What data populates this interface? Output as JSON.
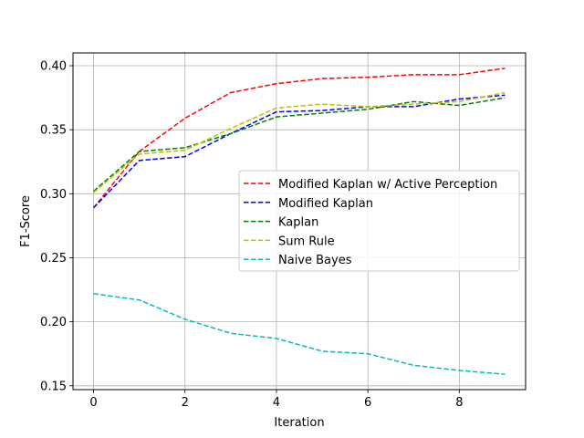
{
  "chart_data": {
    "type": "line",
    "title": "",
    "xlabel": "Iteration",
    "ylabel": "F1-Score",
    "xlim": [
      -0.45,
      9.45
    ],
    "ylim": [
      0.147,
      0.41
    ],
    "xticks": [
      0,
      2,
      4,
      6,
      8
    ],
    "xtick_labels": [
      "0",
      "2",
      "4",
      "6",
      "8"
    ],
    "yticks": [
      0.15,
      0.2,
      0.25,
      0.3,
      0.35,
      0.4
    ],
    "ytick_labels": [
      "0.15",
      "0.20",
      "0.25",
      "0.30",
      "0.35",
      "0.40"
    ],
    "grid": true,
    "legend_position": "center-right",
    "x": [
      0,
      1,
      2,
      3,
      4,
      5,
      6,
      7,
      8,
      9
    ],
    "series": [
      {
        "name": "Modified Kaplan w/ Active Perception",
        "color": "#ff0000",
        "style": "dashed",
        "values": [
          0.289,
          0.333,
          0.359,
          0.379,
          0.386,
          0.39,
          0.391,
          0.393,
          0.393,
          0.398
        ]
      },
      {
        "name": "Modified Kaplan",
        "color": "#0000ff",
        "style": "dashed",
        "values": [
          0.289,
          0.326,
          0.329,
          0.347,
          0.364,
          0.365,
          0.368,
          0.368,
          0.374,
          0.377
        ]
      },
      {
        "name": "Kaplan",
        "color": "#008000",
        "style": "dashed",
        "values": [
          0.302,
          0.333,
          0.336,
          0.347,
          0.36,
          0.363,
          0.366,
          0.372,
          0.369,
          0.375
        ]
      },
      {
        "name": "Sum Rule",
        "color": "#bfbf00",
        "style": "dashed",
        "values": [
          0.301,
          0.331,
          0.334,
          0.351,
          0.367,
          0.37,
          0.368,
          0.37,
          0.372,
          0.379
        ]
      },
      {
        "name": "Naive Bayes",
        "color": "#00bfbf",
        "style": "dashed",
        "values": [
          0.222,
          0.217,
          0.202,
          0.191,
          0.187,
          0.177,
          0.175,
          0.166,
          0.162,
          0.159
        ]
      }
    ]
  }
}
